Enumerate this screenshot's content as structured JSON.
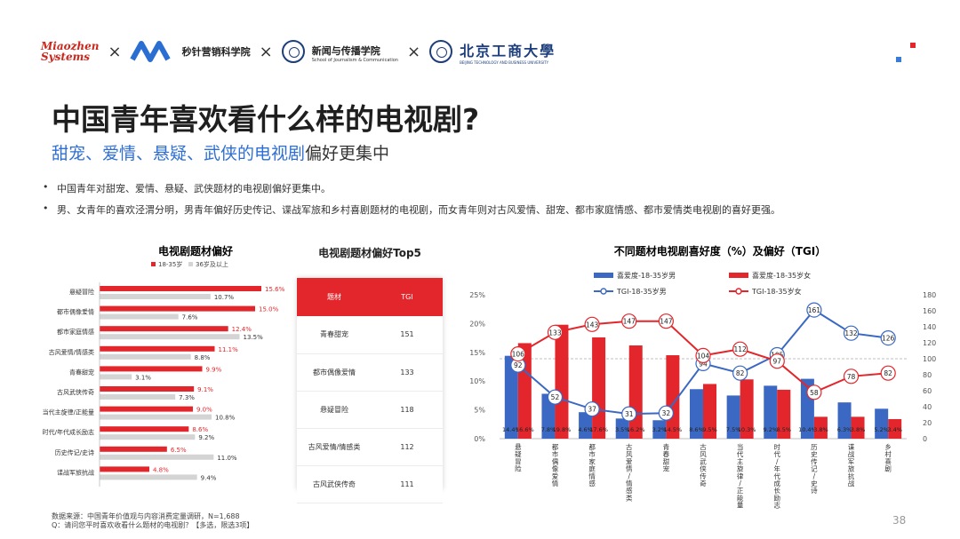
{
  "header": {
    "logo_miaozhen_1": "Miaozhen",
    "logo_miaozhen_2": "Systems",
    "sep": "×",
    "logo2_text": "秒针营销科学院",
    "logo3_text": "新闻与传播学院",
    "logo3_sub": "School of Journalism & Communication",
    "logo4_text": "北京工商大學",
    "logo4_sub": "BEIJING TECHNOLOGY AND BUSINESS UNIVERSITY"
  },
  "title": "中国青年喜欢看什么样的电视剧?",
  "subtitle_highlight": "甜宠、爱情、悬疑、武侠的电视剧",
  "subtitle_rest": "偏好更集中",
  "bullets": [
    "中国青年对甜宠、爱情、悬疑、武侠题材的电视剧偏好更集中。",
    "男、女青年的喜欢泾渭分明，男青年偏好历史传记、谍战军旅和乡村喜剧题材的电视剧，而女青年则对古风爱情、甜宠、都市家庭情感、都市爱情类电视剧的喜好更强。"
  ],
  "footnote_1": "数据来源：中国青年价值观与内容消费定量调研，N=1,688",
  "footnote_2": "Q：请问您平时喜欢收看什么题材的电视剧？【多选，限选3项】",
  "page_number": "38",
  "colors": {
    "red": "#e3262b",
    "grey": "#d4d4d4",
    "blue": "#3a68c2"
  },
  "chart_data": [
    {
      "type": "bar",
      "orientation": "horizontal",
      "title": "电视剧题材偏好",
      "categories": [
        "悬疑冒险",
        "都市偶像爱情",
        "都市家庭情感",
        "古风爱情/情感类",
        "青春甜宠",
        "古风武侠传奇",
        "当代主旋律/正能量",
        "时代/年代成长励志",
        "历史传记/史诗",
        "谍战军旅抗战"
      ],
      "series": [
        {
          "name": "18-35岁",
          "values": [
            15.6,
            15.0,
            12.4,
            11.1,
            9.9,
            9.1,
            9.0,
            8.6,
            6.5,
            4.8
          ],
          "labels": [
            "15.6%",
            "15.0%",
            "12.4%",
            "11.1%",
            "9.9%",
            "9.1%",
            "9.0%",
            "8.6%",
            "6.5%",
            "4.8%"
          ]
        },
        {
          "name": "36岁及以上",
          "values": [
            10.7,
            7.6,
            13.5,
            8.8,
            3.1,
            7.3,
            10.8,
            9.2,
            11.0,
            9.4
          ],
          "labels": [
            "10.7%",
            "7.6%",
            "13.5%",
            "8.8%",
            "3.1%",
            "7.3%",
            "10.8%",
            "9.2%",
            "11.0%",
            "9.4%"
          ]
        }
      ],
      "xlim": [
        0,
        18
      ],
      "legend": "top"
    },
    {
      "type": "table",
      "title": "电视剧题材偏好Top5",
      "columns": [
        "题材",
        "TGI"
      ],
      "rows": [
        [
          "青春甜宠",
          "151"
        ],
        [
          "都市偶像爱情",
          "133"
        ],
        [
          "悬疑冒险",
          "118"
        ],
        [
          "古风爱情/情感类",
          "112"
        ],
        [
          "古风武侠传奇",
          "111"
        ]
      ]
    },
    {
      "type": "bar",
      "title": "不同题材电视剧喜好度（%）及偏好（TGI）",
      "categories": [
        "悬疑冒险",
        "都市偶像爱情",
        "都市家庭情感",
        "古风爱情/情感类",
        "青春甜宠",
        "古风武侠传奇",
        "当代主旋律/正能量",
        "时代/年代成长励志",
        "历史传记/史诗",
        "谍战军旅抗战",
        "乡村喜剧"
      ],
      "category_labels": [
        "悬疑冒险",
        "都市偶像爱情",
        "都市家庭情感",
        "古风爱情/情感类",
        "青春甜宠",
        "古风武侠传奇",
        "当代主旋律/正能量",
        "时代/年代成长励志",
        "历史传记/史诗",
        "谍战军旅抗战",
        "乡村喜剧"
      ],
      "series": [
        {
          "name": "喜爱度-18-35岁男",
          "kind": "bar",
          "axis": "left",
          "values": [
            14.4,
            7.8,
            4.6,
            3.5,
            3.2,
            8.6,
            7.5,
            9.2,
            10.4,
            6.3,
            5.2
          ],
          "labels": [
            "14.4%",
            "7.8%",
            "4.6%",
            "3.5%",
            "3.2%",
            "8.6%",
            "7.5%",
            "9.2%",
            "10.4%",
            "6.3%",
            "5.2%"
          ]
        },
        {
          "name": "喜爱度-18-35岁女",
          "kind": "bar",
          "axis": "left",
          "values": [
            16.6,
            19.8,
            17.6,
            16.2,
            14.5,
            9.5,
            10.3,
            8.5,
            3.8,
            3.8,
            3.4
          ],
          "labels": [
            "16.6%",
            "19.8%",
            "17.6%",
            "16.2%",
            "14.5%",
            "9.5%",
            "10.3%",
            "8.5%",
            "3.8%",
            "3.8%",
            "3.4%"
          ]
        },
        {
          "name": "TGI-18-35岁男",
          "kind": "line",
          "axis": "right",
          "values": [
            92,
            52,
            37,
            31,
            32,
            94,
            82,
            105,
            161,
            132,
            126
          ]
        },
        {
          "name": "TGI-18-35岁女",
          "kind": "line",
          "axis": "right",
          "values": [
            106,
            133,
            143,
            147,
            147,
            104,
            112,
            97,
            58,
            78,
            82
          ]
        }
      ],
      "ylim_left": [
        0,
        25
      ],
      "yticks_left": [
        "0%",
        "5%",
        "10%",
        "15%",
        "20%",
        "25%"
      ],
      "ylim_right": [
        0,
        180
      ],
      "yticks_right": [
        "0",
        "20",
        "40",
        "60",
        "80",
        "100",
        "120",
        "140",
        "160",
        "180"
      ],
      "reference_line": 100,
      "legend": "top"
    }
  ]
}
